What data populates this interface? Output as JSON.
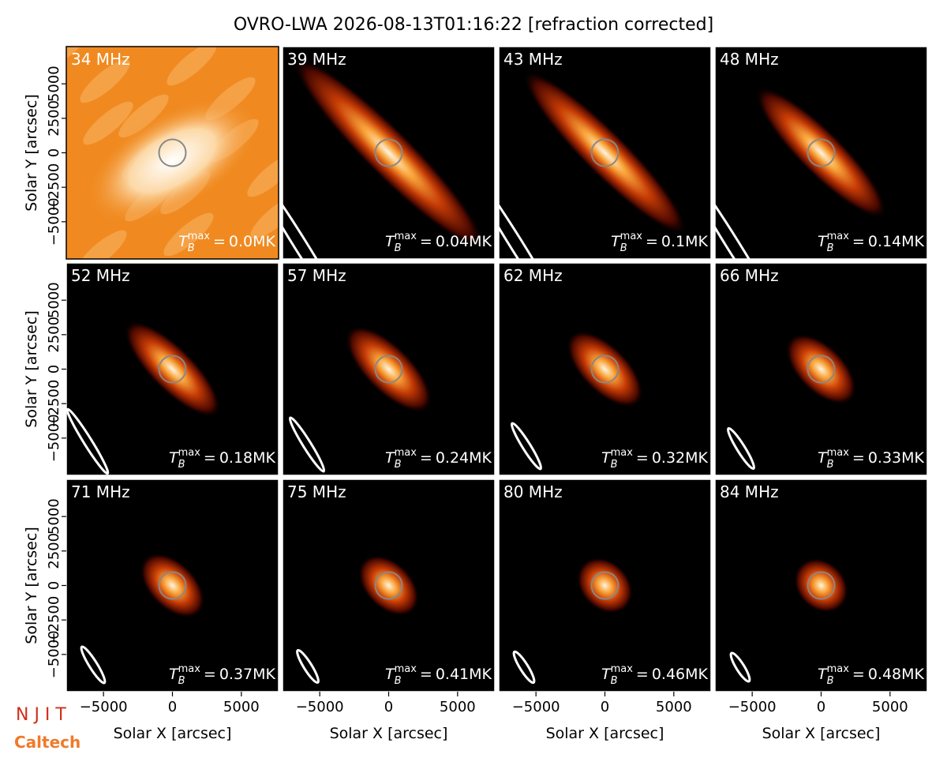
{
  "title": "OVRO-LWA 2026-08-13T01:16:22 [refraction corrected]",
  "axes": {
    "xlabel": "Solar X [arcsec]",
    "ylabel": "Solar Y [arcsec]",
    "xlim": [
      -7700,
      7700
    ],
    "ylim": [
      -7700,
      7700
    ],
    "xticks": [
      {
        "value": -5000,
        "label": "−5000"
      },
      0,
      5000
    ],
    "yticks": [
      {
        "value": -5000,
        "label": "−5000"
      },
      {
        "value": -2500,
        "label": "−2500"
      },
      0,
      2500,
      5000
    ]
  },
  "tb_label": {
    "symbol": "T",
    "sub": "B",
    "sup": "max",
    "sign": "="
  },
  "panels": [
    {
      "label": "34 MHz",
      "tb_max": "0.0MK"
    },
    {
      "label": "39 MHz",
      "tb_max": "0.04MK"
    },
    {
      "label": "43 MHz",
      "tb_max": "0.1MK"
    },
    {
      "label": "48 MHz",
      "tb_max": "0.14MK"
    },
    {
      "label": "52 MHz",
      "tb_max": "0.18MK"
    },
    {
      "label": "57 MHz",
      "tb_max": "0.24MK"
    },
    {
      "label": "62 MHz",
      "tb_max": "0.32MK"
    },
    {
      "label": "66 MHz",
      "tb_max": "0.33MK"
    },
    {
      "label": "71 MHz",
      "tb_max": "0.37MK"
    },
    {
      "label": "75 MHz",
      "tb_max": "0.41MK"
    },
    {
      "label": "80 MHz",
      "tb_max": "0.46MK"
    },
    {
      "label": "84 MHz",
      "tb_max": "0.48MK"
    }
  ],
  "logos": [
    "N J I T",
    "Caltech"
  ]
}
